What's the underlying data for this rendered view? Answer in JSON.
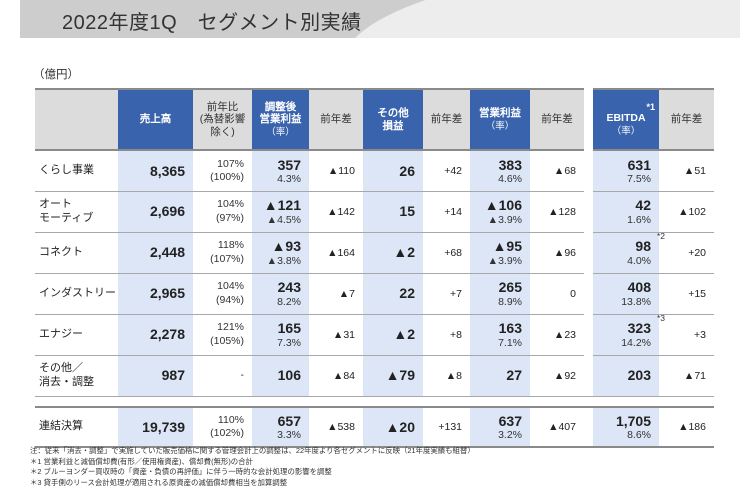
{
  "header": {
    "title": "2022年度1Q　セグメント別実績"
  },
  "unit_label": "（億円）",
  "table": {
    "columns": {
      "sales": "売上高",
      "sales_yoy_ratio_l1": "前年比",
      "sales_yoy_ratio_l2": "(為替影響",
      "sales_yoy_ratio_l3": "除く)",
      "adj_op_l1": "調整後",
      "adj_op_l2": "営業利益",
      "adj_op_l3": "（率）",
      "diff1": "前年差",
      "other_l1": "その他",
      "other_l2": "損益",
      "diff2": "前年差",
      "op_l1": "営業利益",
      "op_l2": "（率）",
      "diff3": "前年差",
      "ebitda_note": "*1",
      "ebitda_l1": "EBITDA",
      "ebitda_l2": "（率）",
      "diff4": "前年差"
    },
    "rows": [
      {
        "name_l1": "くらし事業",
        "name_l2": "",
        "sales": "8,365",
        "ratio": "107%",
        "ratio_fx": "(100%)",
        "adj_op": "357",
        "adj_op_rate": "4.3%",
        "adj_op_diff": "▲110",
        "other": "26",
        "other_diff": "+42",
        "op": "383",
        "op_rate": "4.6%",
        "op_diff": "▲68",
        "ebitda": "631",
        "ebitda_note": "",
        "ebitda_rate": "7.5%",
        "ebitda_diff": "▲51"
      },
      {
        "name_l1": "オート",
        "name_l2": "モーティブ",
        "sales": "2,696",
        "ratio": "104%",
        "ratio_fx": "(97%)",
        "adj_op": "▲121",
        "adj_op_rate": "▲4.5%",
        "adj_op_diff": "▲142",
        "other": "15",
        "other_diff": "+14",
        "op": "▲106",
        "op_rate": "▲3.9%",
        "op_diff": "▲128",
        "ebitda": "42",
        "ebitda_note": "",
        "ebitda_rate": "1.6%",
        "ebitda_diff": "▲102"
      },
      {
        "name_l1": "コネクト",
        "name_l2": "",
        "sales": "2,448",
        "ratio": "118%",
        "ratio_fx": "(107%)",
        "adj_op": "▲93",
        "adj_op_rate": "▲3.8%",
        "adj_op_diff": "▲164",
        "other": "▲2",
        "other_diff": "+68",
        "op": "▲95",
        "op_rate": "▲3.9%",
        "op_diff": "▲96",
        "ebitda": "98",
        "ebitda_note": "*2",
        "ebitda_rate": "4.0%",
        "ebitda_diff": "+20"
      },
      {
        "name_l1": "インダストリー",
        "name_l2": "",
        "sales": "2,965",
        "ratio": "104%",
        "ratio_fx": "(94%)",
        "adj_op": "243",
        "adj_op_rate": "8.2%",
        "adj_op_diff": "▲7",
        "other": "22",
        "other_diff": "+7",
        "op": "265",
        "op_rate": "8.9%",
        "op_diff": "0",
        "ebitda": "408",
        "ebitda_note": "",
        "ebitda_rate": "13.8%",
        "ebitda_diff": "+15"
      },
      {
        "name_l1": "エナジー",
        "name_l2": "",
        "sales": "2,278",
        "ratio": "121%",
        "ratio_fx": "(105%)",
        "adj_op": "165",
        "adj_op_rate": "7.3%",
        "adj_op_diff": "▲31",
        "other": "▲2",
        "other_diff": "+8",
        "op": "163",
        "op_rate": "7.1%",
        "op_diff": "▲23",
        "ebitda": "323",
        "ebitda_note": "*3",
        "ebitda_rate": "14.2%",
        "ebitda_diff": "+3"
      },
      {
        "name_l1": "その他／",
        "name_l2": "消去・調整",
        "sales": "987",
        "ratio": "-",
        "ratio_fx": "",
        "adj_op": "106",
        "adj_op_rate": "",
        "adj_op_diff": "▲84",
        "other": "▲79",
        "other_diff": "▲8",
        "op": "27",
        "op_rate": "",
        "op_diff": "▲92",
        "ebitda": "203",
        "ebitda_note": "",
        "ebitda_rate": "",
        "ebitda_diff": "▲71"
      }
    ],
    "total": {
      "name_l1": "連結決算",
      "name_l2": "",
      "sales": "19,739",
      "ratio": "110%",
      "ratio_fx": "(102%)",
      "adj_op": "657",
      "adj_op_rate": "3.3%",
      "adj_op_diff": "▲538",
      "other": "▲20",
      "other_diff": "+131",
      "op": "637",
      "op_rate": "3.2%",
      "op_diff": "▲407",
      "ebitda": "1,705",
      "ebitda_note": "",
      "ebitda_rate": "8.6%",
      "ebitda_diff": "▲186"
    }
  },
  "notes": [
    "注：従来「消去・調整」で実施していた販売価格に関する管理会計上の調整は、22年度より各セグメントに反映（21年度実績も組替）",
    "＊1  営業利益と減価償却費(有形／使用権資産)、償却費(無形)の合計",
    "＊2  ブルーヨンダー買収時の「資産・負債の再評価」に伴う一時的な会計処理の影響を調整",
    "＊3  貸手側のリース会計処理が適用される原資産の減価償却費相当を加算調整"
  ],
  "colors": {
    "header_blue": "#3a63ad",
    "cell_blue": "#dde6f6",
    "header_grey": "#dcdcdc",
    "title_band": "#cdcdcd"
  }
}
